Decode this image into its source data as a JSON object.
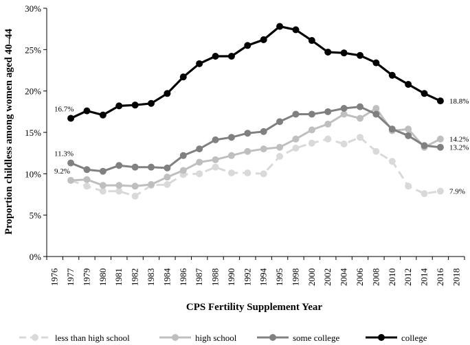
{
  "chart_data": {
    "type": "line",
    "title": "",
    "xlabel": "CPS Fertility Supplement Year",
    "ylabel": "Proportion childless among women aged 40–44",
    "ylim": [
      0,
      30
    ],
    "y_ticks": [
      "0%",
      "5%",
      "10%",
      "15%",
      "20%",
      "25%",
      "30%"
    ],
    "categories": [
      "1976",
      "1977",
      "1979",
      "1980",
      "1981",
      "1982",
      "1983",
      "1984",
      "1986",
      "1987",
      "1988",
      "1990",
      "1992",
      "1994",
      "1995",
      "1998",
      "2000",
      "2002",
      "2004",
      "2006",
      "2008",
      "2010",
      "2012",
      "2014",
      "2016",
      "2018"
    ],
    "grid": false,
    "legend_position": "bottom",
    "series": [
      {
        "name": "less than high school",
        "color": "#d9d9d9",
        "dash": true,
        "values": [
          null,
          9.2,
          8.5,
          7.9,
          7.9,
          7.3,
          8.6,
          8.7,
          9.9,
          10.0,
          10.8,
          10.1,
          10.1,
          10.0,
          12.1,
          13.1,
          13.7,
          14.2,
          13.6,
          14.4,
          12.7,
          11.5,
          8.5,
          7.6,
          7.9,
          null
        ],
        "start_label": "9.2%",
        "end_label": "7.9%"
      },
      {
        "name": "high school",
        "color": "#bfbfbf",
        "dash": false,
        "values": [
          null,
          9.2,
          9.3,
          8.6,
          8.6,
          8.5,
          8.7,
          9.6,
          10.4,
          11.4,
          11.7,
          12.2,
          12.7,
          13.0,
          13.2,
          14.2,
          15.3,
          16.0,
          17.2,
          16.7,
          17.9,
          15.2,
          15.4,
          13.2,
          14.2,
          null
        ],
        "end_label": "14.2%"
      },
      {
        "name": "some college",
        "color": "#808080",
        "dash": false,
        "values": [
          null,
          11.3,
          10.5,
          10.3,
          11.0,
          10.8,
          10.8,
          10.7,
          12.2,
          13.0,
          14.1,
          14.4,
          14.9,
          15.1,
          16.3,
          17.2,
          17.2,
          17.5,
          17.9,
          18.1,
          17.2,
          15.4,
          14.6,
          13.4,
          13.2,
          null
        ],
        "start_label": "11.3%",
        "end_label": "13.2%"
      },
      {
        "name": "college",
        "color": "#000000",
        "dash": false,
        "values": [
          null,
          16.7,
          17.6,
          17.1,
          18.2,
          18.3,
          18.5,
          19.7,
          21.7,
          23.3,
          24.2,
          24.2,
          25.5,
          26.2,
          27.8,
          27.4,
          26.1,
          24.7,
          24.6,
          24.3,
          23.4,
          21.9,
          20.8,
          19.7,
          18.8,
          null
        ],
        "start_label": "16.7%",
        "end_label": "18.8%"
      }
    ]
  }
}
